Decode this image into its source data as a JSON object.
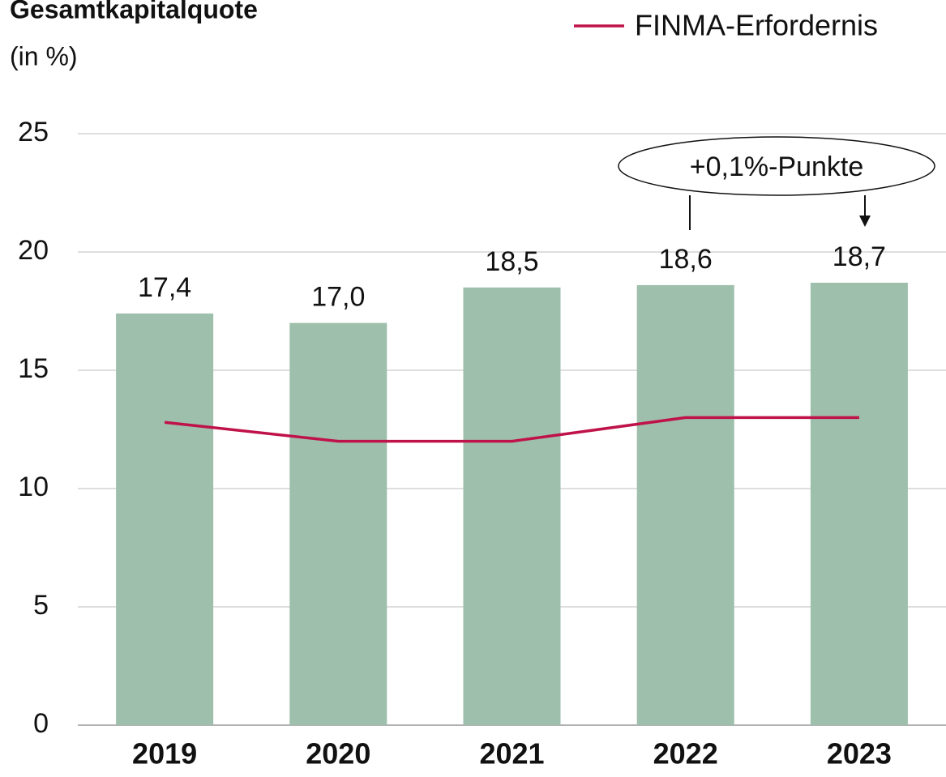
{
  "chart_data": {
    "type": "bar",
    "title": "Gesamtkapitalquote",
    "subtitle": "(in %)",
    "categories": [
      "2019",
      "2020",
      "2021",
      "2022",
      "2023"
    ],
    "series": [
      {
        "type": "bar",
        "color": "#9dbfab",
        "values": [
          17.4,
          17.0,
          18.5,
          18.6,
          18.7
        ],
        "value_labels": [
          "17,4",
          "17,0",
          "18,5",
          "18,6",
          "18,7"
        ]
      },
      {
        "type": "line",
        "name": "FINMA-Erfordernis",
        "color": "#c0124a",
        "values": [
          12.8,
          12.0,
          12.0,
          13.0,
          13.0
        ]
      }
    ],
    "annotation": "+0,1%-Punkte",
    "ylim": [
      0,
      25
    ],
    "yticks": [
      0,
      5,
      10,
      15,
      20,
      25
    ],
    "grid": true,
    "legend": "top-right"
  }
}
